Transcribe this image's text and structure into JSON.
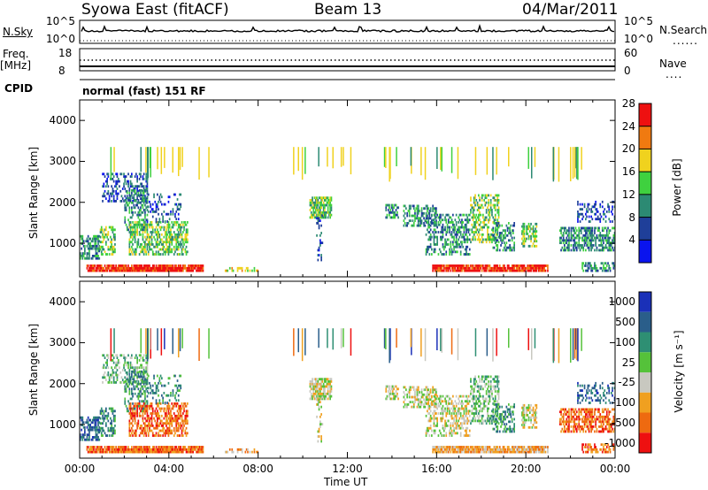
{
  "header": {
    "station": "Syowa East (fitACF)",
    "beam": "Beam 13",
    "date": "04/Mar/2011"
  },
  "summary_panels": {
    "nsky_label": "N.Sky",
    "nsky_ticks": [
      "10^5",
      "10^0"
    ],
    "nsearch_label": "N.Search",
    "nsearch_ticks": [
      "10^5",
      "10^0"
    ],
    "freq_label_line1": "Freq.",
    "freq_label_line2": "[MHz]",
    "freq_ticks": [
      "18",
      "8"
    ],
    "nave_label": "Nave",
    "nave_ticks": [
      "60",
      "0"
    ],
    "cpid_label": "CPID",
    "cpid_text": "normal (fast) 151 RF"
  },
  "chart_data": [
    {
      "type": "heatmap",
      "title": "Power",
      "ylabel": "Slant Range [km]",
      "xlabel": "",
      "yticks": [
        "1000",
        "2000",
        "3000",
        "4000"
      ],
      "ylim": [
        180,
        4500
      ],
      "xlim": [
        0,
        24
      ],
      "colorbar_label": "Power [dB]",
      "colorbar_ticks": [
        "4",
        "8",
        "12",
        "16",
        "20",
        "24",
        "28"
      ],
      "colorbar_range": [
        0,
        32
      ],
      "colors": [
        "#0a14ee",
        "#1f3f99",
        "#2c8a73",
        "#3fd13f",
        "#f0d21e",
        "#f07a10",
        "#ee1010"
      ],
      "description": "backscatter power vs time and slant range"
    },
    {
      "type": "heatmap",
      "title": "Velocity",
      "ylabel": "Slant Range [km]",
      "xlabel": "Time UT",
      "xticks": [
        "00:00",
        "04:00",
        "08:00",
        "12:00",
        "16:00",
        "20:00",
        "00:00"
      ],
      "yticks": [
        "1000",
        "2000",
        "3000",
        "4000"
      ],
      "ylim": [
        180,
        4500
      ],
      "xlim": [
        0,
        24
      ],
      "colorbar_label": "Velocity [m s⁻¹]",
      "colorbar_ticks": [
        "1000",
        "500",
        "100",
        "25",
        "-25",
        "-100",
        "-500",
        "-1000"
      ],
      "colors": [
        "#1a30b8",
        "#2a5e8a",
        "#2e8f73",
        "#55c23a",
        "#c8c8c0",
        "#f0a020",
        "#ee6a10",
        "#ee1010"
      ],
      "description": "line-of-sight doppler velocity vs time and slant range"
    }
  ],
  "colors": {
    "axis": "#000000",
    "background": "#ffffff"
  }
}
